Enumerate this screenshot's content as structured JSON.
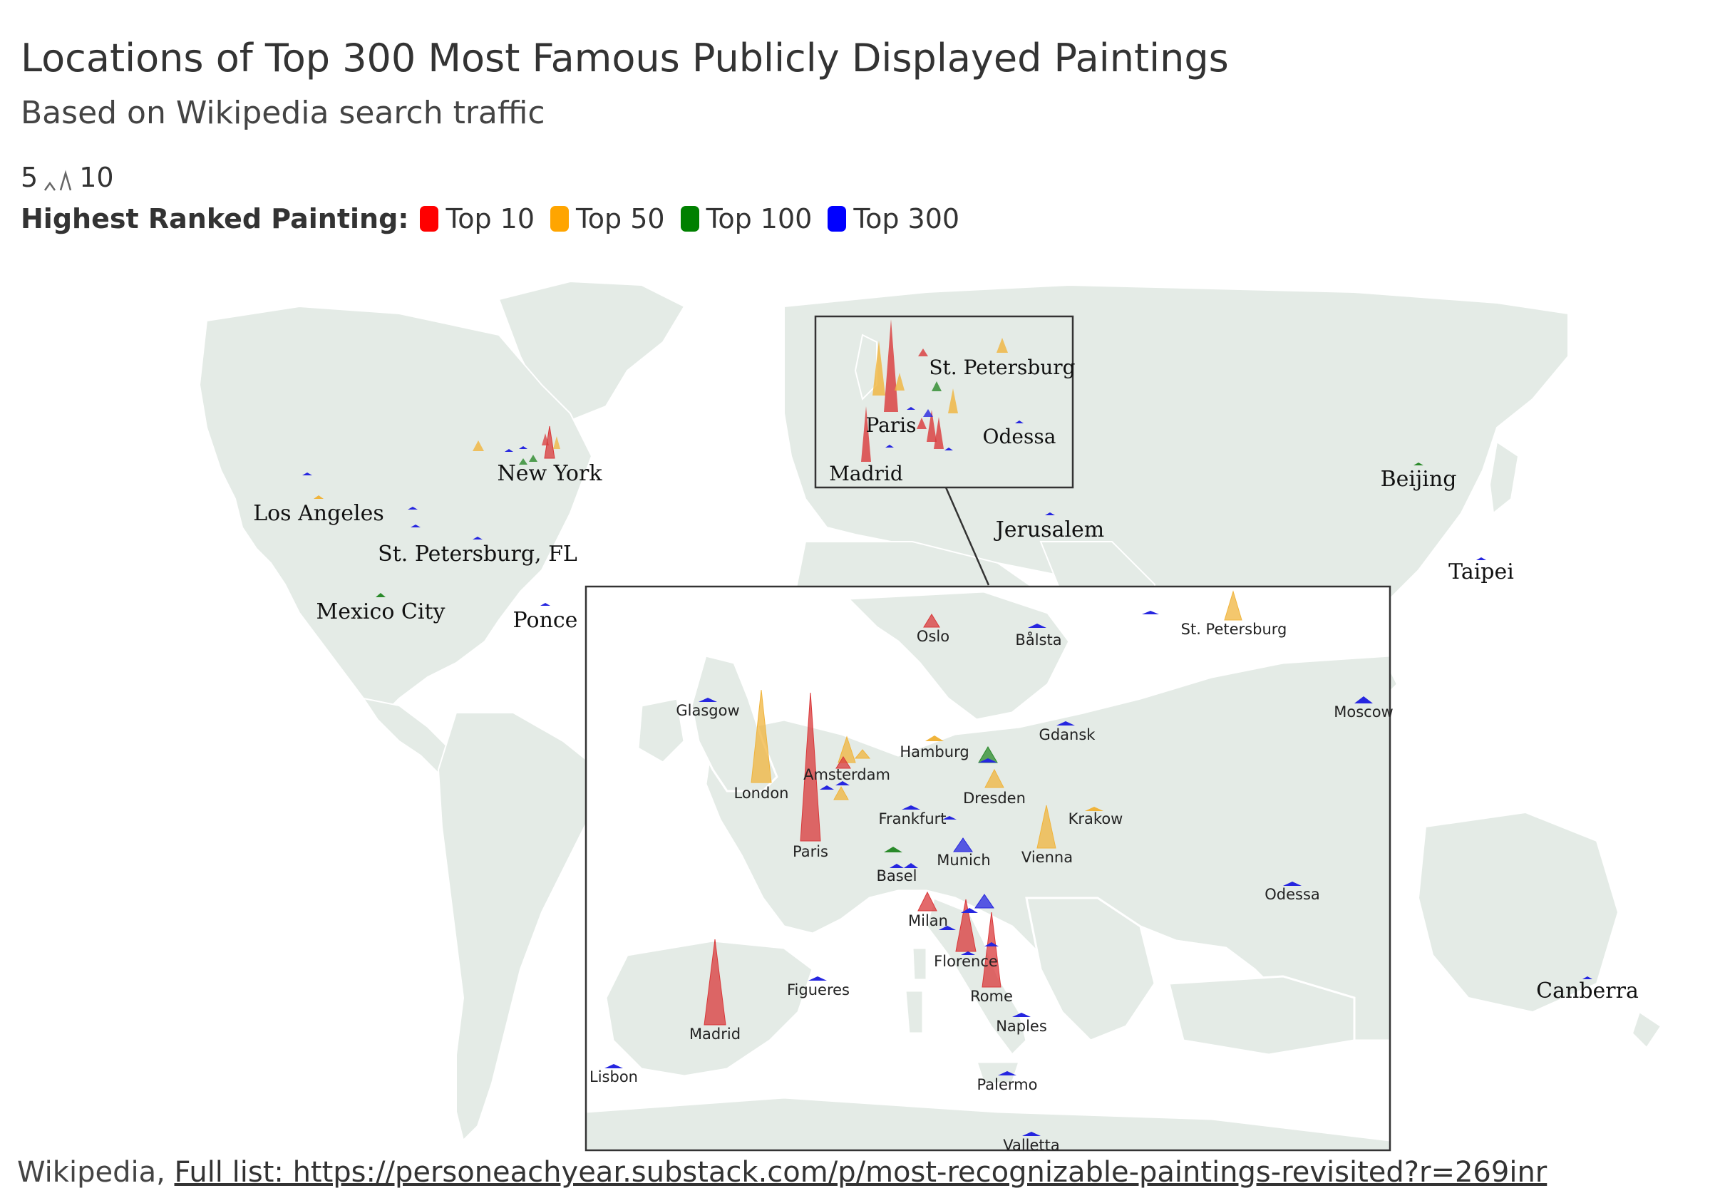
{
  "title": "Locations of Top 300 Most Famous Publicly Displayed Paintings",
  "subtitle": "Based on Wikipedia search traffic",
  "size_legend": {
    "min_label": "5",
    "max_label": "10"
  },
  "color_legend": {
    "label": "Highest Ranked Painting:",
    "items": [
      {
        "label": "Top 10",
        "color": "#ff0000"
      },
      {
        "label": "Top 50",
        "color": "#ffa500"
      },
      {
        "label": "Top 100",
        "color": "#008000"
      },
      {
        "label": "Top 300",
        "color": "#0000ff"
      }
    ]
  },
  "footer": {
    "source": "Wikipedia,",
    "link_text": "Full list: https://personeachyear.substack.com/p/most-recognizable-paintings-revisited?r=269inr"
  },
  "world_labels": [
    "New York",
    "Los Angeles",
    "St. Petersburg, FL",
    "Mexico City",
    "Ponce",
    "Jerusalem",
    "Beijing",
    "Taipei",
    "Canberra"
  ],
  "inset_small_labels": [
    "St. Petersburg",
    "Paris",
    "Odessa",
    "Madrid"
  ],
  "europe_labels": [
    "Oslo",
    "Bålsta",
    "St. Petersburg",
    "Glasgow",
    "Moscow",
    "Gdansk",
    "Hamburg",
    "Amsterdam",
    "London",
    "Dresden",
    "Frankfurt",
    "Krakow",
    "Paris",
    "Munich",
    "Vienna",
    "Basel",
    "Odessa",
    "Milan",
    "Florence",
    "Rome",
    "Figueres",
    "Madrid",
    "Naples",
    "Lisbon",
    "Palermo",
    "Valletta"
  ],
  "colors": {
    "land": "#e4ebe6",
    "border": "#ffffff",
    "frame": "#333333",
    "top10": "#d9383a",
    "top50": "#f0b43c",
    "top100": "#2a8a2a",
    "top300": "#2626e0"
  }
}
